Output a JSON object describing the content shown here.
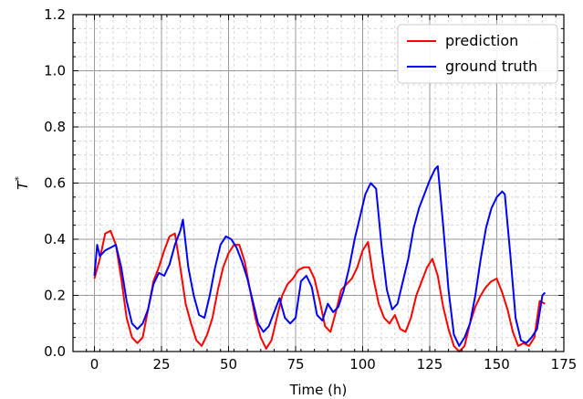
{
  "chart_data": {
    "type": "line",
    "title": "",
    "xlabel": "Time (h)",
    "ylabel": "T*",
    "xlim": [
      -8,
      175
    ],
    "ylim": [
      0.0,
      1.2
    ],
    "x_ticks": [
      0,
      25,
      50,
      75,
      100,
      125,
      150,
      175
    ],
    "y_ticks": [
      0.0,
      0.2,
      0.4,
      0.6,
      0.8,
      1.0,
      1.2
    ],
    "x_tick_labels": [
      "0",
      "25",
      "50",
      "75",
      "100",
      "125",
      "150",
      "175"
    ],
    "y_tick_labels": [
      "0.0",
      "0.2",
      "0.4",
      "0.6",
      "0.8",
      "1.0",
      "1.2"
    ],
    "grid": true,
    "legend_position": "top-right",
    "series": [
      {
        "name": "prediction",
        "color": "#ff0000",
        "points": [
          [
            0,
            0.26
          ],
          [
            2,
            0.33
          ],
          [
            4,
            0.42
          ],
          [
            6,
            0.43
          ],
          [
            8,
            0.38
          ],
          [
            10,
            0.26
          ],
          [
            12,
            0.12
          ],
          [
            14,
            0.05
          ],
          [
            16,
            0.03
          ],
          [
            18,
            0.05
          ],
          [
            20,
            0.15
          ],
          [
            22,
            0.25
          ],
          [
            24,
            0.3
          ],
          [
            26,
            0.36
          ],
          [
            28,
            0.41
          ],
          [
            30,
            0.42
          ],
          [
            32,
            0.3
          ],
          [
            34,
            0.17
          ],
          [
            36,
            0.1
          ],
          [
            38,
            0.04
          ],
          [
            40,
            0.02
          ],
          [
            42,
            0.06
          ],
          [
            44,
            0.12
          ],
          [
            46,
            0.22
          ],
          [
            48,
            0.3
          ],
          [
            50,
            0.35
          ],
          [
            52,
            0.38
          ],
          [
            54,
            0.38
          ],
          [
            56,
            0.32
          ],
          [
            58,
            0.22
          ],
          [
            60,
            0.12
          ],
          [
            62,
            0.05
          ],
          [
            64,
            0.01
          ],
          [
            66,
            0.04
          ],
          [
            68,
            0.12
          ],
          [
            70,
            0.2
          ],
          [
            72,
            0.24
          ],
          [
            74,
            0.26
          ],
          [
            76,
            0.29
          ],
          [
            78,
            0.3
          ],
          [
            80,
            0.3
          ],
          [
            82,
            0.26
          ],
          [
            84,
            0.18
          ],
          [
            86,
            0.09
          ],
          [
            88,
            0.07
          ],
          [
            90,
            0.14
          ],
          [
            92,
            0.22
          ],
          [
            94,
            0.24
          ],
          [
            96,
            0.26
          ],
          [
            98,
            0.3
          ],
          [
            100,
            0.36
          ],
          [
            102,
            0.39
          ],
          [
            104,
            0.26
          ],
          [
            106,
            0.17
          ],
          [
            108,
            0.12
          ],
          [
            110,
            0.1
          ],
          [
            112,
            0.13
          ],
          [
            114,
            0.08
          ],
          [
            116,
            0.07
          ],
          [
            118,
            0.12
          ],
          [
            120,
            0.2
          ],
          [
            122,
            0.25
          ],
          [
            124,
            0.3
          ],
          [
            126,
            0.33
          ],
          [
            128,
            0.27
          ],
          [
            130,
            0.16
          ],
          [
            132,
            0.08
          ],
          [
            134,
            0.02
          ],
          [
            136,
            0.0
          ],
          [
            138,
            0.02
          ],
          [
            140,
            0.1
          ],
          [
            142,
            0.16
          ],
          [
            144,
            0.2
          ],
          [
            146,
            0.23
          ],
          [
            148,
            0.25
          ],
          [
            150,
            0.26
          ],
          [
            152,
            0.21
          ],
          [
            154,
            0.15
          ],
          [
            156,
            0.07
          ],
          [
            158,
            0.02
          ],
          [
            160,
            0.03
          ],
          [
            162,
            0.02
          ],
          [
            164,
            0.05
          ],
          [
            166,
            0.18
          ],
          [
            168,
            0.17
          ]
        ]
      },
      {
        "name": "ground truth",
        "color": "#0000ff",
        "points": [
          [
            0,
            0.27
          ],
          [
            1,
            0.38
          ],
          [
            2,
            0.34
          ],
          [
            4,
            0.36
          ],
          [
            6,
            0.37
          ],
          [
            8,
            0.38
          ],
          [
            10,
            0.3
          ],
          [
            12,
            0.18
          ],
          [
            14,
            0.1
          ],
          [
            16,
            0.08
          ],
          [
            18,
            0.1
          ],
          [
            20,
            0.15
          ],
          [
            22,
            0.24
          ],
          [
            24,
            0.28
          ],
          [
            26,
            0.27
          ],
          [
            28,
            0.31
          ],
          [
            30,
            0.38
          ],
          [
            32,
            0.43
          ],
          [
            33,
            0.47
          ],
          [
            35,
            0.3
          ],
          [
            37,
            0.2
          ],
          [
            39,
            0.13
          ],
          [
            41,
            0.12
          ],
          [
            43,
            0.2
          ],
          [
            45,
            0.3
          ],
          [
            47,
            0.38
          ],
          [
            49,
            0.41
          ],
          [
            51,
            0.4
          ],
          [
            53,
            0.37
          ],
          [
            55,
            0.32
          ],
          [
            57,
            0.26
          ],
          [
            59,
            0.18
          ],
          [
            61,
            0.1
          ],
          [
            63,
            0.07
          ],
          [
            65,
            0.09
          ],
          [
            67,
            0.14
          ],
          [
            69,
            0.19
          ],
          [
            71,
            0.12
          ],
          [
            73,
            0.1
          ],
          [
            75,
            0.12
          ],
          [
            77,
            0.25
          ],
          [
            79,
            0.27
          ],
          [
            81,
            0.23
          ],
          [
            83,
            0.13
          ],
          [
            85,
            0.11
          ],
          [
            87,
            0.17
          ],
          [
            89,
            0.14
          ],
          [
            91,
            0.16
          ],
          [
            93,
            0.22
          ],
          [
            95,
            0.3
          ],
          [
            97,
            0.4
          ],
          [
            99,
            0.48
          ],
          [
            101,
            0.56
          ],
          [
            103,
            0.6
          ],
          [
            105,
            0.58
          ],
          [
            107,
            0.38
          ],
          [
            109,
            0.22
          ],
          [
            111,
            0.15
          ],
          [
            113,
            0.17
          ],
          [
            115,
            0.25
          ],
          [
            117,
            0.33
          ],
          [
            119,
            0.44
          ],
          [
            121,
            0.51
          ],
          [
            123,
            0.56
          ],
          [
            125,
            0.61
          ],
          [
            127,
            0.65
          ],
          [
            128,
            0.66
          ],
          [
            130,
            0.45
          ],
          [
            132,
            0.22
          ],
          [
            134,
            0.06
          ],
          [
            136,
            0.02
          ],
          [
            138,
            0.05
          ],
          [
            140,
            0.1
          ],
          [
            142,
            0.2
          ],
          [
            144,
            0.33
          ],
          [
            146,
            0.44
          ],
          [
            148,
            0.51
          ],
          [
            150,
            0.55
          ],
          [
            152,
            0.57
          ],
          [
            153,
            0.56
          ],
          [
            155,
            0.35
          ],
          [
            157,
            0.12
          ],
          [
            159,
            0.04
          ],
          [
            161,
            0.03
          ],
          [
            163,
            0.05
          ],
          [
            165,
            0.08
          ],
          [
            167,
            0.2
          ],
          [
            168,
            0.21
          ]
        ]
      }
    ]
  }
}
